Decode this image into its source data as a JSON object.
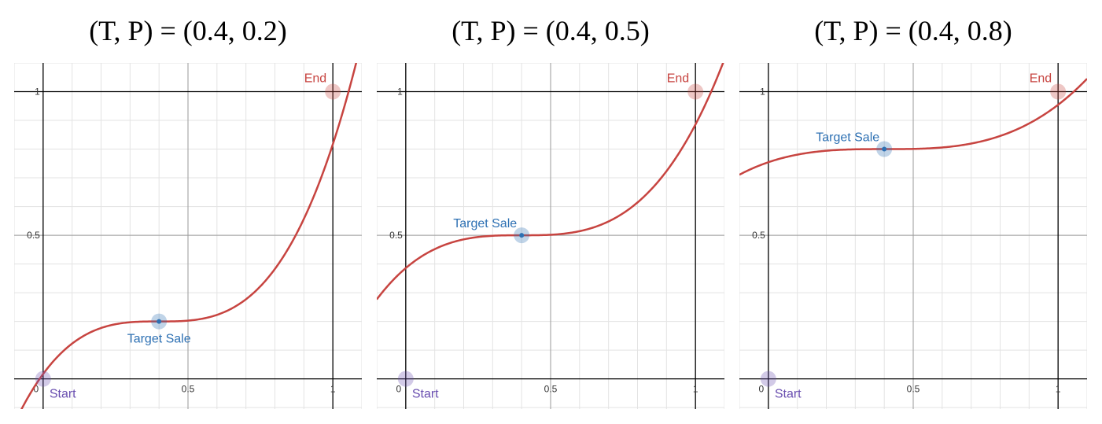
{
  "chart_data": [
    {
      "type": "line",
      "title": "(T, P) = (0.4, 0.2)",
      "T": 0.4,
      "P": 0.2,
      "xlim": [
        -0.1,
        1.1
      ],
      "ylim": [
        -0.105,
        1.1
      ],
      "xticks": [
        {
          "value": 0,
          "label": "0"
        },
        {
          "value": 0.5,
          "label": "0.5"
        },
        {
          "value": 1,
          "label": "1"
        }
      ],
      "yticks": [
        {
          "value": 0.5,
          "label": "0.5"
        },
        {
          "value": 1,
          "label": "1"
        }
      ],
      "grid": true,
      "points": [
        {
          "label": "Start",
          "x": 0,
          "y": 0,
          "color": "#6a4fb0"
        },
        {
          "label": "Target Sale",
          "x": 0.4,
          "y": 0.2,
          "color": "#2d70b3"
        },
        {
          "label": "End",
          "x": 1,
          "y": 1,
          "color": "#c74440"
        }
      ]
    },
    {
      "type": "line",
      "title": "(T, P) = (0.4, 0.5)",
      "T": 0.4,
      "P": 0.5,
      "xlim": [
        -0.1,
        1.1
      ],
      "ylim": [
        -0.105,
        1.1
      ],
      "xticks": [
        {
          "value": 0,
          "label": "0"
        },
        {
          "value": 0.5,
          "label": "0.5"
        },
        {
          "value": 1,
          "label": "1"
        }
      ],
      "yticks": [
        {
          "value": 0.5,
          "label": "0.5"
        },
        {
          "value": 1,
          "label": "1"
        }
      ],
      "grid": true,
      "points": [
        {
          "label": "Start",
          "x": 0,
          "y": 0,
          "color": "#6a4fb0"
        },
        {
          "label": "Target Sale",
          "x": 0.4,
          "y": 0.5,
          "color": "#2d70b3"
        },
        {
          "label": "End",
          "x": 1,
          "y": 1,
          "color": "#c74440"
        }
      ]
    },
    {
      "type": "line",
      "title": "(T, P) = (0.4, 0.8)",
      "T": 0.4,
      "P": 0.8,
      "xlim": [
        -0.1,
        1.1
      ],
      "ylim": [
        -0.105,
        1.1
      ],
      "xticks": [
        {
          "value": 0,
          "label": "0"
        },
        {
          "value": 0.5,
          "label": "0.5"
        },
        {
          "value": 1,
          "label": "1"
        }
      ],
      "yticks": [
        {
          "value": 0.5,
          "label": "0.5"
        },
        {
          "value": 1,
          "label": "1"
        }
      ],
      "grid": true,
      "points": [
        {
          "label": "Start",
          "x": 0,
          "y": 0,
          "color": "#6a4fb0"
        },
        {
          "label": "Target Sale",
          "x": 0.4,
          "y": 0.8,
          "color": "#2d70b3"
        },
        {
          "label": "End",
          "x": 1,
          "y": 1,
          "color": "#c74440"
        }
      ]
    }
  ],
  "colors": {
    "curve": "#c74440",
    "grid_minor": "#e3e3e3",
    "grid_major": "#9a9a9a",
    "axis": "#000000"
  }
}
